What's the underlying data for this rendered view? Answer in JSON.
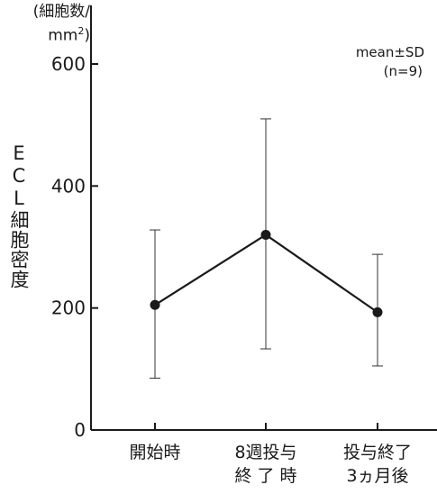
{
  "chart_data": {
    "type": "line",
    "ylabel": "ECL細胞密度",
    "yunit": [
      "(細胞数/",
      "mm",
      "2",
      ")"
    ],
    "ylim": [
      0,
      600
    ],
    "yticks": [
      0,
      200,
      400,
      600
    ],
    "categories": [
      [
        "開始時"
      ],
      [
        "8週投与",
        "終 了 時"
      ],
      [
        "投与終了",
        "3ヵ月後"
      ]
    ],
    "series": [
      {
        "values": [
          205,
          320,
          193
        ],
        "error_low": [
          85,
          133,
          105
        ],
        "error_high": [
          328,
          510,
          288
        ]
      }
    ],
    "annotation": [
      "mean±SD",
      "(n=9)"
    ]
  }
}
